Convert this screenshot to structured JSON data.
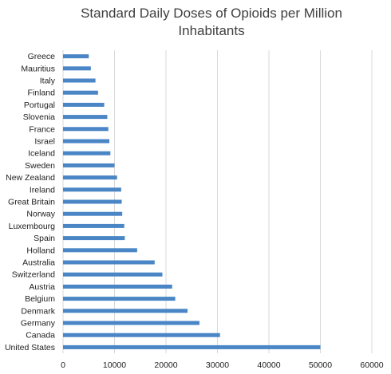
{
  "chart_data": {
    "type": "bar",
    "orientation": "horizontal",
    "title": "Standard Daily Doses of Opioids per Million Inhabitants",
    "xlabel": "",
    "ylabel": "",
    "xlim": [
      0,
      60000
    ],
    "xticks": [
      0,
      10000,
      20000,
      30000,
      40000,
      50000,
      60000
    ],
    "grid": true,
    "legend": "none",
    "bar_color": "#4a86c5",
    "gridline_color": "#d9d9d9",
    "categories": [
      "Greece",
      "Mauritius",
      "Italy",
      "Finland",
      "Portugal",
      "Slovenia",
      "France",
      "Israel",
      "Iceland",
      "Sweden",
      "New Zealand",
      "Ireland",
      "Great Britain",
      "Norway",
      "Luxembourg",
      "Spain",
      "Holland",
      "Australia",
      "Switzerland",
      "Austria",
      "Belgium",
      "Denmark",
      "Germany",
      "Canada",
      "United States"
    ],
    "values": [
      5000,
      5400,
      6300,
      6800,
      8000,
      8600,
      8800,
      9000,
      9200,
      10000,
      10500,
      11300,
      11400,
      11500,
      11900,
      12000,
      14400,
      17800,
      19300,
      21200,
      21800,
      24200,
      26500,
      30500,
      50000
    ]
  }
}
